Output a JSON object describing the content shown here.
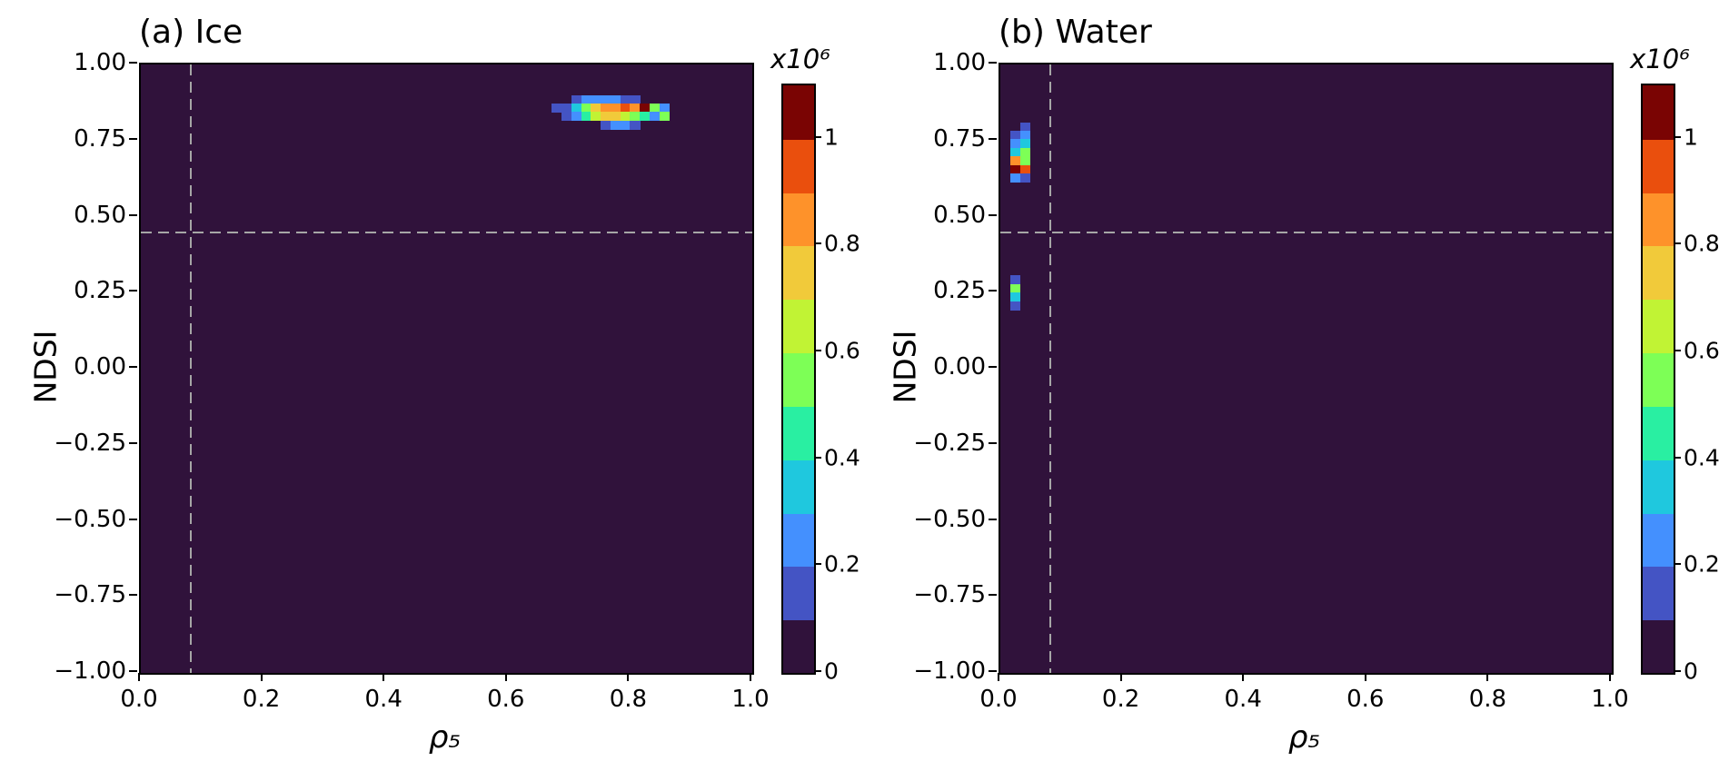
{
  "chart_data": {
    "type": "heatmap",
    "value_unit": "counts x10⁶",
    "palette": [
      "#30123b",
      "#4454c4",
      "#4490fe",
      "#1fc8de",
      "#29efa2",
      "#7dff56",
      "#c1f334",
      "#f1ca3a",
      "#fe922a",
      "#ea4f0d",
      "#7a0403"
    ],
    "styles": {
      "plot_background": "#30123b",
      "dashed_line_color": "#a6a6a6",
      "axis_color": "#000000",
      "figure_background": "#ffffff"
    },
    "panels": [
      {
        "id": "ice",
        "title": "(a) Ice",
        "xlabel": "ρ₅",
        "ylabel": "NDSI",
        "xlim": [
          0,
          1
        ],
        "ylim": [
          -1,
          1
        ],
        "xticks": {
          "values": [
            0,
            0.2,
            0.4,
            0.6,
            0.8,
            1
          ],
          "labels": [
            "0.0",
            "0.2",
            "0.4",
            "0.6",
            "0.8",
            "1.0"
          ]
        },
        "yticks": {
          "values": [
            1,
            0.75,
            0.5,
            0.25,
            0,
            -0.25,
            -0.5,
            -0.75,
            -1
          ],
          "labels": [
            "1.00",
            "0.75",
            "0.50",
            "0.25",
            "0.00",
            "−0.25",
            "−0.50",
            "−0.75",
            "−1.00"
          ]
        },
        "thresholds": {
          "x": 0.08,
          "y": 0.45
        },
        "bin": {
          "dx": 0.016,
          "dy": 0.028
        },
        "colorbar": {
          "label": "x10⁶",
          "vmax": 1.1,
          "ticks": {
            "values": [
              0,
              0.2,
              0.4,
              0.6,
              0.8,
              1
            ],
            "labels": [
              "0",
              "0.2",
              "0.4",
              "0.6",
              "0.8",
              "1"
            ]
          }
        },
        "cells": [
          [
            0.704,
            0.872,
            0.15
          ],
          [
            0.72,
            0.872,
            0.25
          ],
          [
            0.736,
            0.872,
            0.25
          ],
          [
            0.752,
            0.872,
            0.28
          ],
          [
            0.768,
            0.872,
            0.25
          ],
          [
            0.784,
            0.872,
            0.18
          ],
          [
            0.8,
            0.872,
            0.12
          ],
          [
            0.672,
            0.844,
            0.12
          ],
          [
            0.688,
            0.844,
            0.18
          ],
          [
            0.704,
            0.844,
            0.32
          ],
          [
            0.72,
            0.844,
            0.55
          ],
          [
            0.736,
            0.844,
            0.75
          ],
          [
            0.752,
            0.844,
            0.85
          ],
          [
            0.768,
            0.844,
            0.88
          ],
          [
            0.784,
            0.844,
            0.95
          ],
          [
            0.8,
            0.844,
            0.85
          ],
          [
            0.816,
            0.844,
            1.05
          ],
          [
            0.832,
            0.844,
            0.55
          ],
          [
            0.848,
            0.844,
            0.25
          ],
          [
            0.688,
            0.816,
            0.13
          ],
          [
            0.704,
            0.816,
            0.24
          ],
          [
            0.72,
            0.816,
            0.45
          ],
          [
            0.736,
            0.816,
            0.62
          ],
          [
            0.752,
            0.816,
            0.78
          ],
          [
            0.768,
            0.816,
            0.72
          ],
          [
            0.784,
            0.816,
            0.62
          ],
          [
            0.8,
            0.816,
            0.52
          ],
          [
            0.816,
            0.816,
            0.42
          ],
          [
            0.832,
            0.816,
            0.28
          ],
          [
            0.848,
            0.816,
            0.52
          ],
          [
            0.752,
            0.788,
            0.14
          ],
          [
            0.768,
            0.788,
            0.22
          ],
          [
            0.784,
            0.788,
            0.25
          ],
          [
            0.8,
            0.788,
            0.16
          ]
        ]
      },
      {
        "id": "water",
        "title": "(b) Water",
        "xlabel": "ρ₅",
        "ylabel": "NDSI",
        "xlim": [
          0,
          1
        ],
        "ylim": [
          -1,
          1
        ],
        "xticks": {
          "values": [
            0,
            0.2,
            0.4,
            0.6,
            0.8,
            1
          ],
          "labels": [
            "0.0",
            "0.2",
            "0.4",
            "0.6",
            "0.8",
            "1.0"
          ]
        },
        "yticks": {
          "values": [
            1,
            0.75,
            0.5,
            0.25,
            0,
            -0.25,
            -0.5,
            -0.75,
            -1
          ],
          "labels": [
            "1.00",
            "0.75",
            "0.50",
            "0.25",
            "0.00",
            "−0.25",
            "−0.50",
            "−0.75",
            "−1.00"
          ]
        },
        "thresholds": {
          "x": 0.08,
          "y": 0.45
        },
        "bin": {
          "dx": 0.016,
          "dy": 0.028
        },
        "colorbar": {
          "label": "x10⁶",
          "vmax": 1.1,
          "ticks": {
            "values": [
              0,
              0.2,
              0.4,
              0.6,
              0.8,
              1
            ],
            "labels": [
              "0",
              "0.2",
              "0.4",
              "0.6",
              "0.8",
              "1"
            ]
          }
        },
        "cells": [
          [
            0.032,
            0.782,
            0.13
          ],
          [
            0.016,
            0.754,
            0.15
          ],
          [
            0.032,
            0.754,
            0.22
          ],
          [
            0.016,
            0.726,
            0.25
          ],
          [
            0.032,
            0.726,
            0.32
          ],
          [
            0.016,
            0.698,
            0.38
          ],
          [
            0.032,
            0.698,
            0.55
          ],
          [
            0.016,
            0.67,
            0.85
          ],
          [
            0.032,
            0.67,
            0.55
          ],
          [
            0.016,
            0.642,
            1.05
          ],
          [
            0.032,
            0.642,
            0.92
          ],
          [
            0.016,
            0.614,
            0.25
          ],
          [
            0.032,
            0.614,
            0.15
          ],
          [
            0.016,
            0.278,
            0.18
          ],
          [
            0.016,
            0.25,
            0.55
          ],
          [
            0.016,
            0.222,
            0.35
          ],
          [
            0.016,
            0.194,
            0.15
          ]
        ]
      }
    ]
  }
}
